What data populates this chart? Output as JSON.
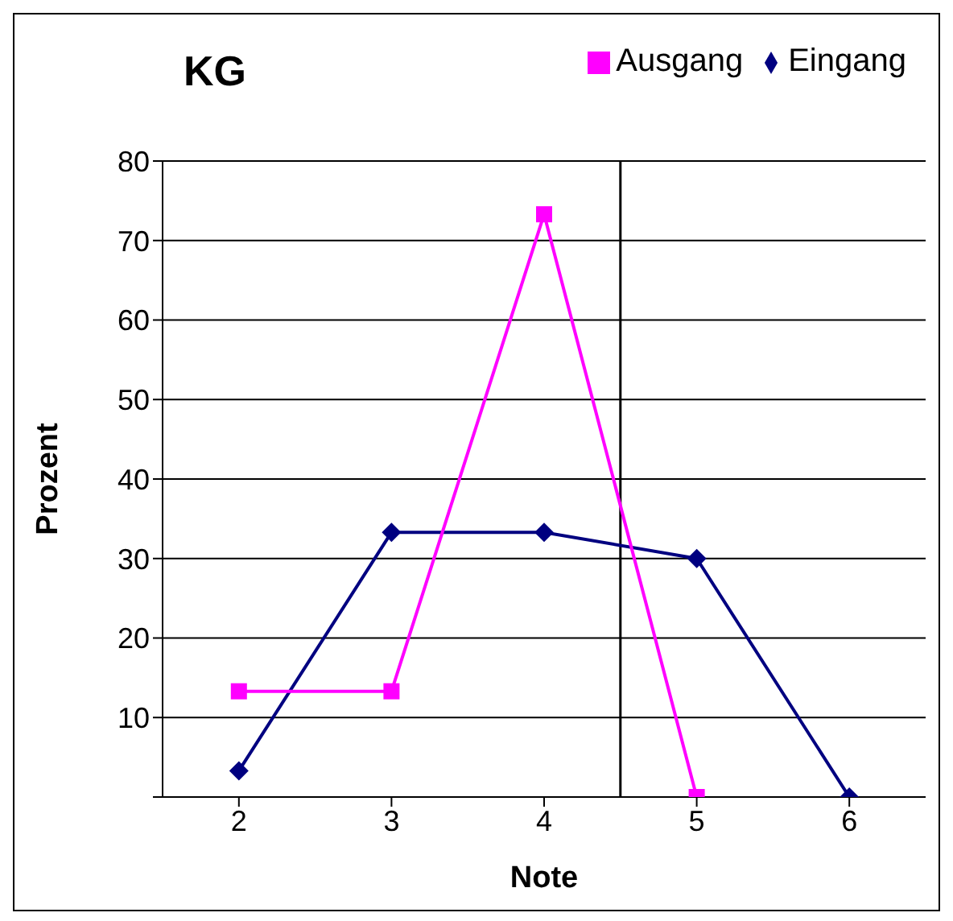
{
  "chart_data": {
    "type": "line",
    "title": "KG",
    "xlabel": "Note",
    "ylabel": "Prozent",
    "x": [
      2,
      3,
      4,
      5,
      6
    ],
    "xlim": [
      1.5,
      6.5
    ],
    "xticks": [
      2,
      3,
      4,
      5,
      6
    ],
    "ylim": [
      0,
      80
    ],
    "yticks": [
      {
        "value": 0,
        "label": null
      },
      10,
      20,
      30,
      40,
      50,
      60,
      70,
      80
    ],
    "grid": "y",
    "legend": "top right",
    "line_style": "solid",
    "series": [
      {
        "name": "Eingang",
        "color": "#000080",
        "marker": "diamond",
        "values": [
          3.3,
          33.3,
          33.3,
          30,
          0
        ]
      },
      {
        "name": "Ausgang",
        "color": "#ff00ff",
        "marker": "square",
        "values": [
          13.3,
          13.3,
          73.3,
          0,
          null
        ]
      }
    ],
    "ref_lines": [
      {
        "axis": "x",
        "value": 4.5,
        "color": "#000000"
      }
    ]
  }
}
